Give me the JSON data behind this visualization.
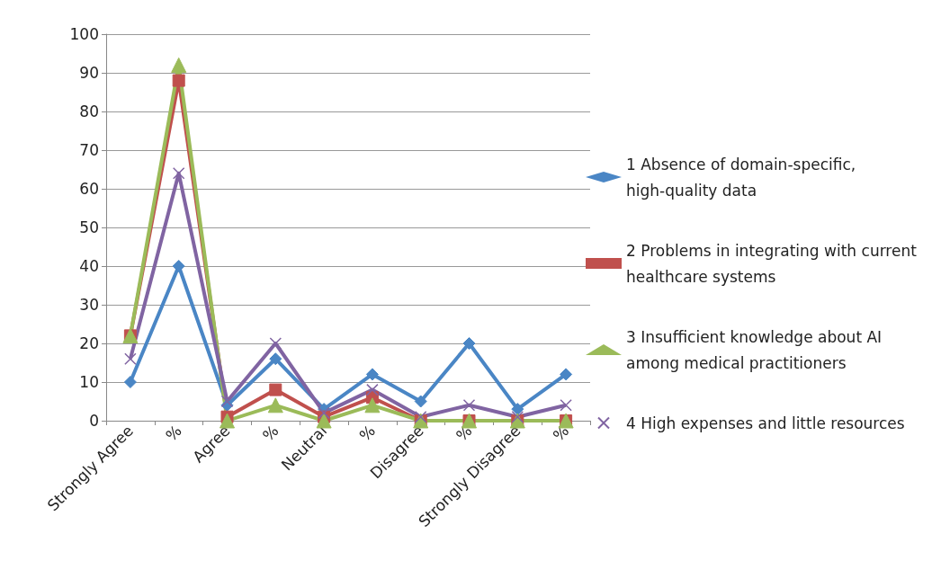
{
  "chart_data": {
    "type": "line",
    "categories": [
      "Strongly Agree",
      "%",
      "Agree",
      "%",
      "Neutral",
      "%",
      "Disagree",
      "%",
      "Strongly Disagree",
      "%"
    ],
    "series": [
      {
        "name": "1 Absence of domain-specific, high-quality data",
        "color": "#4a86c5",
        "marker": "diamond",
        "values": [
          10,
          40,
          4,
          16,
          3,
          12,
          5,
          20,
          3,
          12
        ]
      },
      {
        "name": "2 Problems in integrating with current healthcare systems",
        "color": "#c0504d",
        "marker": "square",
        "values": [
          22,
          88,
          1,
          8,
          1,
          6,
          0,
          0,
          0,
          0
        ]
      },
      {
        "name": "3 Insufficient knowledge about AI among medical practitioners",
        "color": "#9bbb59",
        "marker": "triangle",
        "values": [
          22,
          92,
          0,
          4,
          0,
          4,
          0,
          0,
          0,
          0
        ]
      },
      {
        "name": "4 High expenses and little resources",
        "color": "#8064a2",
        "marker": "cross",
        "values": [
          16,
          64,
          5,
          20,
          2,
          8,
          1,
          4,
          1,
          4
        ]
      }
    ],
    "ylim": [
      0,
      100
    ],
    "yticks": [
      0,
      10,
      20,
      30,
      40,
      50,
      60,
      70,
      80,
      90,
      100
    ],
    "grid": "y",
    "legend": "right"
  }
}
